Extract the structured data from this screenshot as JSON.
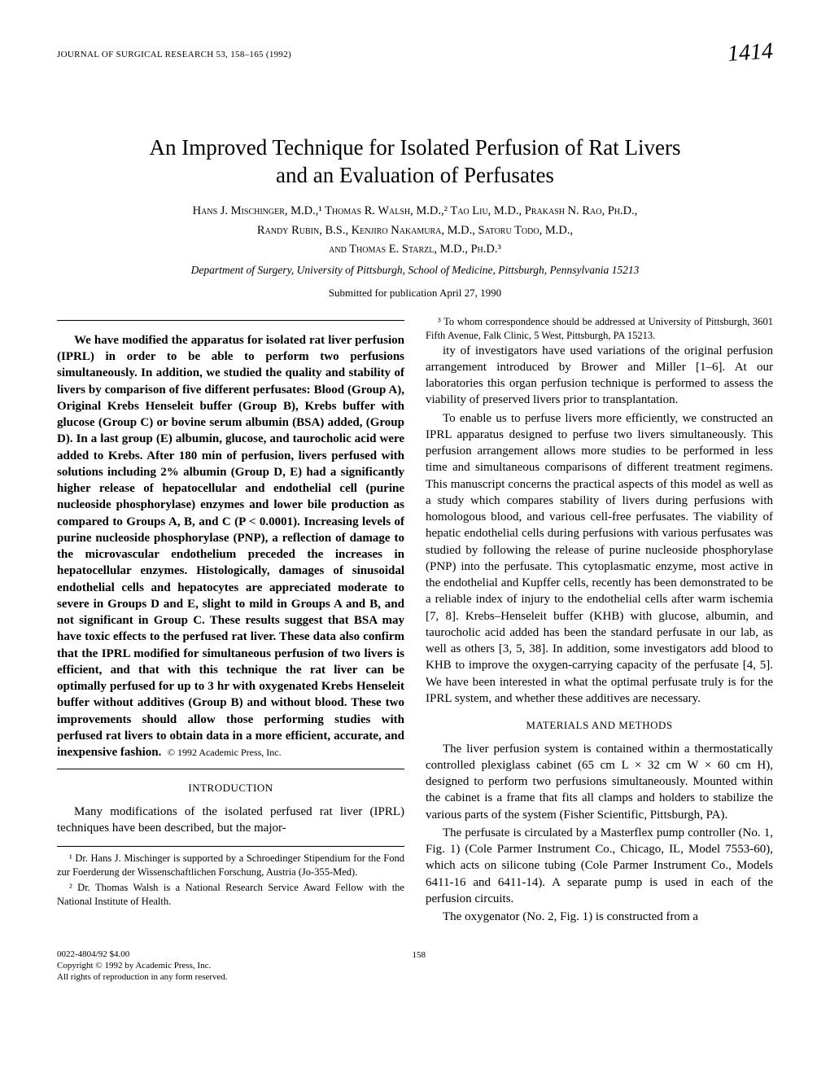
{
  "running_head": "JOURNAL OF SURGICAL RESEARCH 53, 158–165 (1992)",
  "handwritten_note": "1414",
  "title_line1": "An Improved Technique for Isolated Perfusion of Rat Livers",
  "title_line2": "and an Evaluation of Perfusates",
  "authors_line1": "Hans J. Mischinger, M.D.,¹ Thomas R. Walsh, M.D.,² Tao Liu, M.D., Prakash N. Rao, Ph.D.,",
  "authors_line2": "Randy Rubin, B.S., Kenjiro Nakamura, M.D., Satoru Todo, M.D.,",
  "authors_line3": "and Thomas E. Starzl, M.D., Ph.D.³",
  "affiliation": "Department of Surgery, University of Pittsburgh, School of Medicine, Pittsburgh, Pennsylvania 15213",
  "submitted": "Submitted for publication April 27, 1990",
  "abstract_text": "We have modified the apparatus for isolated rat liver perfusion (IPRL) in order to be able to perform two perfusions simultaneously. In addition, we studied the quality and stability of livers by comparison of five different perfusates: Blood (Group A), Original Krebs Henseleit buffer (Group B), Krebs buffer with glucose (Group C) or bovine serum albumin (BSA) added, (Group D). In a last group (E) albumin, glucose, and taurocholic acid were added to Krebs. After 180 min of perfusion, livers perfused with solutions including 2% albumin (Group D, E) had a significantly higher release of hepatocellular and endothelial cell (purine nucleoside phosphorylase) enzymes and lower bile production as compared to Groups A, B, and C (P < 0.0001). Increasing levels of purine nucleoside phosphorylase (PNP), a reflection of damage to the microvascular endothelium preceded the increases in hepatocellular enzymes. Histologically, damages of sinusoidal endothelial cells and hepatocytes are appreciated moderate to severe in Groups D and E, slight to mild in Groups A and B, and not significant in Group C. These results suggest that BSA may have toxic effects to the perfused rat liver. These data also confirm that the IPRL modified for simultaneous perfusion of two livers is efficient, and that with this technique the rat liver can be optimally perfused for up to 3 hr with oxygenated Krebs Henseleit buffer without additives (Group B) and without blood. These two improvements should allow those performing studies with perfused rat livers to obtain data in a more efficient, accurate, and inexpensive fashion.",
  "abstract_copyright": "© 1992 Academic Press, Inc.",
  "introduction_head": "INTRODUCTION",
  "intro_p1": "Many modifications of the isolated perfused rat liver (IPRL) techniques have been described, but the major-",
  "footnote1": "¹ Dr. Hans J. Mischinger is supported by a Schroedinger Stipendium for the Fond zur Foerderung der Wissenschaftlichen Forschung, Austria (Jo-355-Med).",
  "footnote2": "² Dr. Thomas Walsh is a National Research Service Award Fellow with the National Institute of Health.",
  "footnote3": "³ To whom correspondence should be addressed at University of Pittsburgh, 3601 Fifth Avenue, Falk Clinic, 5 West, Pittsburgh, PA 15213.",
  "col2_p1": "ity of investigators have used variations of the original perfusion arrangement introduced by Brower and Miller [1–6]. At our laboratories this organ perfusion technique is performed to assess the viability of preserved livers prior to transplantation.",
  "col2_p2": "To enable us to perfuse livers more efficiently, we constructed an IPRL apparatus designed to perfuse two livers simultaneously. This perfusion arrangement allows more studies to be performed in less time and simultaneous comparisons of different treatment regimens. This manuscript concerns the practical aspects of this model as well as a study which compares stability of livers during perfusions with homologous blood, and various cell-free perfusates. The viability of hepatic endothelial cells during perfusions with various perfusates was studied by following the release of purine nucleoside phosphorylase (PNP) into the perfusate. This cytoplasmatic enzyme, most active in the endothelial and Kupffer cells, recently has been demonstrated to be a reliable index of injury to the endothelial cells after warm ischemia [7, 8]. Krebs–Henseleit buffer (KHB) with glucose, albumin, and taurocholic acid added has been the standard perfusate in our lab, as well as others [3, 5, 38]. In addition, some investigators add blood to KHB to improve the oxygen-carrying capacity of the perfusate [4, 5]. We have been interested in what the optimal perfusate truly is for the IPRL system, and whether these additives are necessary.",
  "methods_head": "MATERIALS AND METHODS",
  "methods_p1": "The liver perfusion system is contained within a thermostatically controlled plexiglass cabinet (65 cm L × 32 cm W × 60 cm H), designed to perform two perfusions simultaneously. Mounted within the cabinet is a frame that fits all clamps and holders to stabilize the various parts of the system (Fisher Scientific, Pittsburgh, PA).",
  "methods_p2": "The perfusate is circulated by a Masterflex pump controller (No. 1, Fig. 1) (Cole Parmer Instrument Co., Chicago, IL, Model 7553-60), which acts on silicone tubing (Cole Parmer Instrument Co., Models 6411-16 and 6411-14). A separate pump is used in each of the perfusion circuits.",
  "methods_p3": "The oxygenator (No. 2, Fig. 1) is constructed from a",
  "footer": {
    "issn": "0022-4804/92 $4.00",
    "copyright": "Copyright © 1992 by Academic Press, Inc.",
    "rights": "All rights of reproduction in any form reserved.",
    "page_number": "158"
  }
}
